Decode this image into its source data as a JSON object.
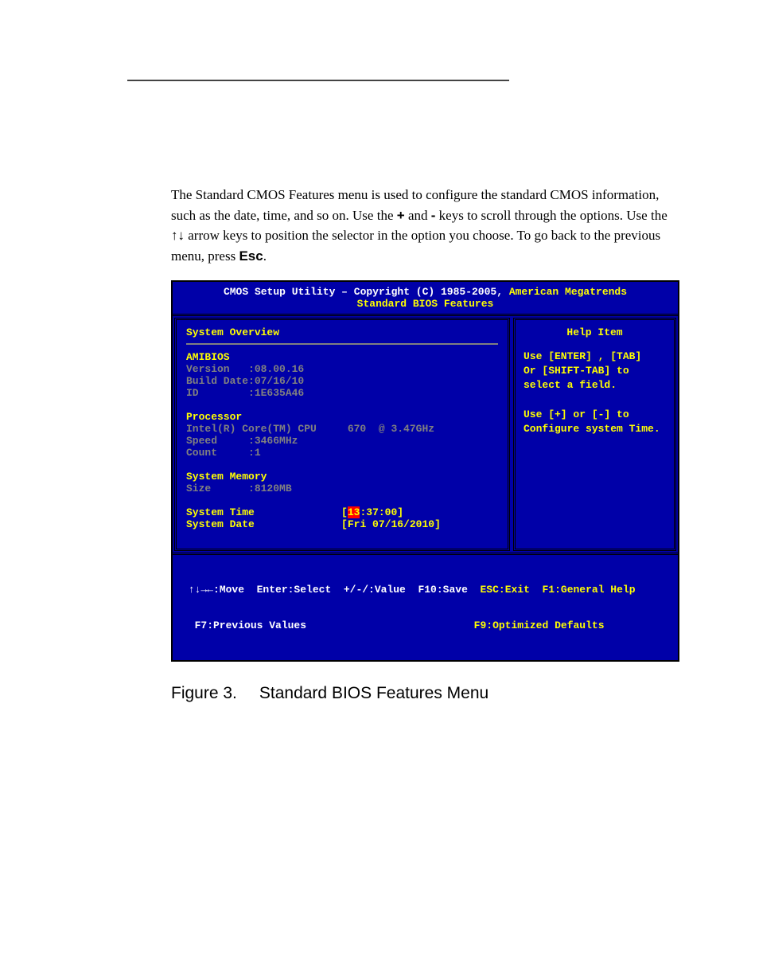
{
  "intro": {
    "line1a": "The Standard CMOS Features menu is used to configure the standard CMOS",
    "line2a": "information, such as the date, time, and so on. Use the ",
    "plus": "+",
    "line2b": " and ",
    "minus": "-",
    "line2c": " keys to scroll",
    "line3a": "through the options. Use the ",
    "arrows": "↑↓",
    "line3b": " arrow keys to position the selector in the",
    "line4a": "option you choose. To go back to the previous menu, press ",
    "esc": "Esc",
    "line4b": "."
  },
  "bios": {
    "header1a": "CMOS Setup Utility – Copyright (C) 1985-2005, ",
    "header1b": "American Megatrends",
    "header2": "Standard BIOS Features",
    "main_title": "System Overview",
    "help_title": "Help Item",
    "amibios": {
      "head": "AMIBIOS",
      "version_label": "Version   :",
      "version": "08.00.16",
      "build_label": "Build Date:",
      "build": "07/16/10",
      "id_label": "ID        :",
      "id": "1E635A46"
    },
    "processor": {
      "head": "Processor",
      "cpu": "Intel(R) Core(TM) CPU     670  @ 3.47GHz",
      "speed_label": "Speed     :",
      "speed": "3466MHz",
      "count_label": "Count     :",
      "count": "1"
    },
    "memory": {
      "head": "System Memory",
      "size_label": "Size      :",
      "size": "8120MB"
    },
    "time": {
      "label": "System Time",
      "bracket_open": "[",
      "hour": "13",
      "rest": ":37:00]"
    },
    "date": {
      "label": "System Date",
      "value": "[Fri 07/16/2010]"
    },
    "help": {
      "l1": "Use [ENTER] , [TAB]",
      "l2": "Or [SHIFT-TAB] to",
      "l3": "select a field.",
      "l4": "",
      "l5": "Use [+] or [-] to",
      "l6": "Configure system Time."
    },
    "footer": {
      "l1_arrows": "↑↓→←:Move  Enter:Select  +/-/:Value  F10:Save  ",
      "l1_rest": "ESC:Exit  F1:General Help",
      "l2_left": "  F7:Previous Values",
      "l2_right": "F9:Optimized Defaults"
    }
  },
  "figure": {
    "num": "Figure 3.",
    "title": "Standard BIOS Features Menu"
  }
}
